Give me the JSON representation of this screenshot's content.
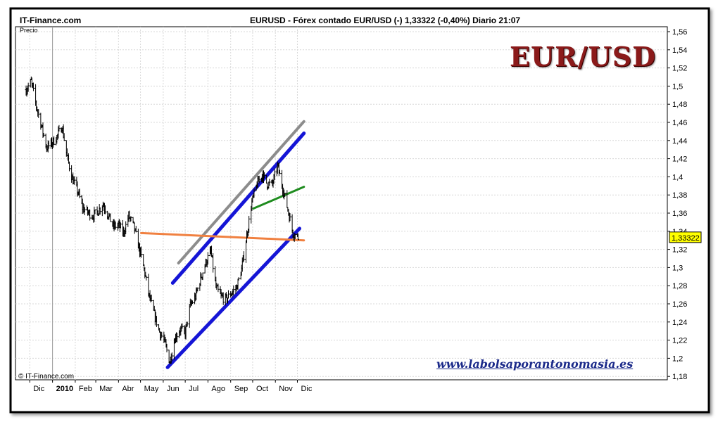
{
  "header": {
    "site": "IT-Finance.com",
    "title": "EURUSD - Fórex contado EUR/USD (-)    1,33322 (-0,40%)    Diario  21:07"
  },
  "price_label": "Precio",
  "copyright": "© IT-Finance.com",
  "brand": "EUR/USD",
  "website": "www.labolsaporantonomasia.es",
  "colors": {
    "candle": "#000000",
    "blue_channel": "#1515d6",
    "gray_line": "#8c8c8c",
    "green_line": "#1f8c1f",
    "orange_line": "#f08040",
    "last_price_box": "#ffff00"
  },
  "chart_data": {
    "type": "line",
    "title": "EURUSD - Fórex contado EUR/USD (-)",
    "ylabel": "Precio",
    "ylim": [
      1.17,
      1.57
    ],
    "y_ticks": [
      1.18,
      1.2,
      1.22,
      1.24,
      1.26,
      1.28,
      1.3,
      1.32,
      1.34,
      1.36,
      1.38,
      1.4,
      1.42,
      1.44,
      1.46,
      1.48,
      1.5,
      1.52,
      1.54,
      1.56
    ],
    "y_tick_labels": [
      "1,18",
      "1,2",
      "1,22",
      "1,24",
      "1,26",
      "1,28",
      "1,3",
      "1,32",
      "1,34",
      "1,36",
      "1,38",
      "1,4",
      "1,42",
      "1,44",
      "1,46",
      "1,48",
      "1,5",
      "1,52",
      "1,54",
      "1,56"
    ],
    "x_months": [
      "Dic",
      "2010",
      "Feb",
      "Mar",
      "Abr",
      "May",
      "Jun",
      "Jul",
      "Ago",
      "Sep",
      "Oct",
      "Nov",
      "Dic"
    ],
    "last_price": "1,33322",
    "series": [
      {
        "x": [
          "2009-11-24",
          "2009-12-01",
          "2009-12-08",
          "2009-12-15",
          "2009-12-22",
          "2009-12-29",
          "2010-01-05",
          "2010-01-12",
          "2010-01-19",
          "2010-01-26",
          "2010-02-02",
          "2010-02-09",
          "2010-02-16",
          "2010-02-23",
          "2010-03-02",
          "2010-03-09",
          "2010-03-16",
          "2010-03-23",
          "2010-03-30",
          "2010-04-06",
          "2010-04-13",
          "2010-04-20",
          "2010-04-27",
          "2010-05-04",
          "2010-05-11",
          "2010-05-18",
          "2010-05-25",
          "2010-06-01",
          "2010-06-08",
          "2010-06-15",
          "2010-06-22",
          "2010-06-29",
          "2010-07-06",
          "2010-07-13",
          "2010-07-20",
          "2010-07-27",
          "2010-08-03",
          "2010-08-10",
          "2010-08-17",
          "2010-08-24",
          "2010-08-31",
          "2010-09-07",
          "2010-09-14",
          "2010-09-21",
          "2010-09-28",
          "2010-10-05",
          "2010-10-12",
          "2010-10-19",
          "2010-10-26",
          "2010-11-02",
          "2010-11-09",
          "2010-11-16",
          "2010-11-23",
          "2010-11-30"
        ],
        "values": [
          1.496,
          1.505,
          1.478,
          1.456,
          1.432,
          1.437,
          1.444,
          1.456,
          1.422,
          1.398,
          1.385,
          1.366,
          1.361,
          1.357,
          1.362,
          1.37,
          1.358,
          1.345,
          1.347,
          1.338,
          1.357,
          1.345,
          1.322,
          1.298,
          1.268,
          1.248,
          1.229,
          1.218,
          1.196,
          1.222,
          1.232,
          1.228,
          1.258,
          1.268,
          1.288,
          1.305,
          1.318,
          1.278,
          1.268,
          1.265,
          1.272,
          1.278,
          1.298,
          1.335,
          1.372,
          1.392,
          1.403,
          1.392,
          1.392,
          1.412,
          1.388,
          1.364,
          1.338,
          1.333
        ]
      }
    ],
    "trendlines": [
      {
        "name": "canal-gris",
        "x": [
          "2010-06-20",
          "2010-12-08"
        ],
        "y": [
          1.305,
          1.461
        ]
      },
      {
        "name": "canal-azul-superior",
        "x": [
          "2010-06-12",
          "2010-12-08"
        ],
        "y": [
          1.283,
          1.448
        ]
      },
      {
        "name": "canal-azul-inferior",
        "x": [
          "2010-06-05",
          "2010-12-02"
        ],
        "y": [
          1.19,
          1.343
        ]
      },
      {
        "name": "linea-verde",
        "x": [
          "2010-09-30",
          "2010-12-08"
        ],
        "y": [
          1.365,
          1.389
        ]
      },
      {
        "name": "linea-naranja",
        "x": [
          "2010-04-30",
          "2010-12-08"
        ],
        "y": [
          1.338,
          1.33
        ]
      }
    ],
    "grid": true
  }
}
